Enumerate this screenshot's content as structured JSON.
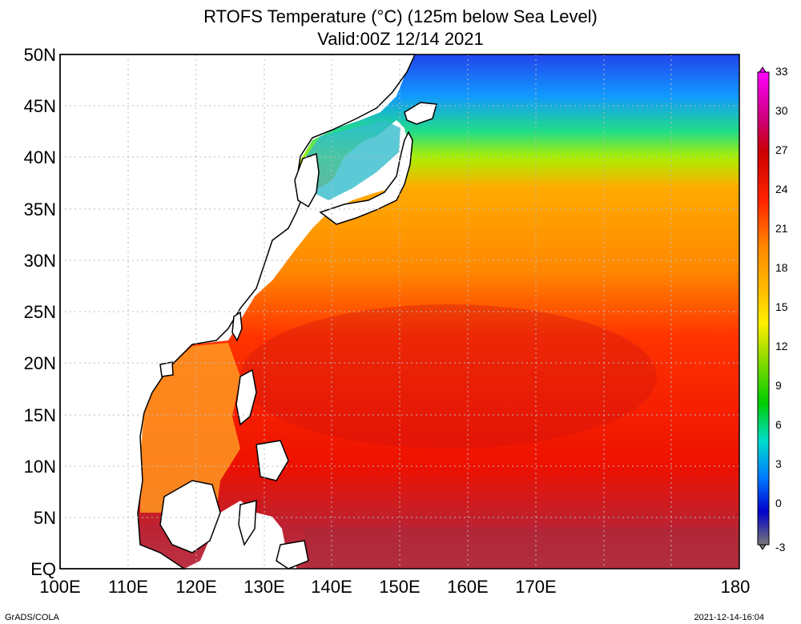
{
  "title_line1": "RTOFS Temperature (°C) (125m below Sea Level)",
  "title_line2": "Valid:00Z 12/14 2021",
  "lat_labels": [
    "50N",
    "45N",
    "40N",
    "35N",
    "30N",
    "25N",
    "20N",
    "15N",
    "10N",
    "5N",
    "EQ"
  ],
  "lon_labels": [
    "100E",
    "110E",
    "120E",
    "130E",
    "140E",
    "150E",
    "160E",
    "170E",
    "180"
  ],
  "colorbar_labels": [
    "33",
    "30",
    "27",
    "24",
    "21",
    "18",
    "15",
    "12",
    "9",
    "6",
    "3",
    "0",
    "-3"
  ],
  "footer_left": "GrADS/COLA",
  "footer_right": "2021-12-14-16:04",
  "colors": {
    "scale": [
      "#ff00ff",
      "#dd0088",
      "#cc0000",
      "#ff2200",
      "#ff6600",
      "#ff9900",
      "#ffdd00",
      "#cccc00",
      "#88dd00",
      "#00cc00",
      "#00ddbb",
      "#0066ff",
      "#0000cc",
      "#777788"
    ]
  }
}
